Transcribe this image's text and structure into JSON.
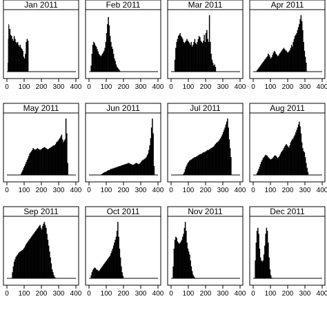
{
  "chart_data": [
    {
      "type": "bar",
      "title": "Jan 2011",
      "xlim": [
        0,
        400
      ],
      "xticks": [
        0,
        100,
        200,
        300,
        400
      ],
      "ylim": [
        0,
        1
      ],
      "bins": [
        {
          "from": 5,
          "to": 15,
          "heights": [
            0.15,
            0.55,
            0.8,
            0.78,
            0.6
          ]
        },
        {
          "from": 15,
          "to": 95,
          "heights": [
            0.72,
            0.62,
            0.6,
            0.55,
            0.52,
            0.6,
            0.55,
            0.5,
            0.48,
            0.5,
            0.45,
            0.42,
            0.45,
            0.4,
            0.38,
            0.35
          ]
        },
        {
          "from": 95,
          "to": 125,
          "heights": [
            0.25,
            0.22,
            0.3,
            0.5,
            0.55,
            0.52
          ]
        }
      ]
    },
    {
      "type": "bar",
      "title": "Feb 2011",
      "xlim": [
        0,
        400
      ],
      "xticks": [
        0,
        100,
        200,
        300,
        400
      ],
      "ylim": [
        0,
        1
      ],
      "bins": [
        {
          "from": 10,
          "to": 60,
          "heights": [
            0.1,
            0.3,
            0.45,
            0.5,
            0.48,
            0.44,
            0.42,
            0.38,
            0.34,
            0.3
          ]
        },
        {
          "from": 60,
          "to": 140,
          "heights": [
            0.28,
            0.26,
            0.27,
            0.3,
            0.32,
            0.35,
            0.4,
            0.5,
            0.65,
            0.8,
            0.92,
            0.78,
            0.6,
            0.5,
            0.42,
            0.38
          ]
        },
        {
          "from": 140,
          "to": 180,
          "heights": [
            0.3,
            0.22,
            0.18,
            0.12,
            0.08,
            0.06,
            0.04,
            0.02
          ]
        }
      ]
    },
    {
      "type": "bar",
      "title": "Mar 2011",
      "xlim": [
        0,
        400
      ],
      "xticks": [
        0,
        100,
        200,
        300,
        400
      ],
      "ylim": [
        0,
        1
      ],
      "bins": [
        {
          "from": 20,
          "to": 90,
          "heights": [
            0.2,
            0.4,
            0.5,
            0.55,
            0.6,
            0.62,
            0.65,
            0.6,
            0.58,
            0.55,
            0.5,
            0.48,
            0.5,
            0.52
          ]
        },
        {
          "from": 90,
          "to": 200,
          "heights": [
            0.55,
            0.52,
            0.5,
            0.48,
            0.45,
            0.5,
            0.42,
            0.45,
            0.5,
            0.55,
            0.48,
            0.46,
            0.5,
            0.55,
            0.6,
            0.58,
            0.52,
            0.5,
            0.48,
            0.52,
            0.62,
            0.5
          ]
        },
        {
          "from": 200,
          "to": 260,
          "heights": [
            0.65,
            0.7,
            0.55,
            0.5,
            0.95,
            0.5,
            0.3,
            0.2,
            0.15,
            0.1,
            0.12,
            0.08
          ]
        }
      ]
    },
    {
      "type": "bar",
      "title": "Apr 2011",
      "xlim": [
        0,
        400
      ],
      "xticks": [
        0,
        100,
        200,
        300,
        400
      ],
      "ylim": [
        0,
        1
      ],
      "bins": [
        {
          "from": 20,
          "to": 80,
          "heights": [
            0.02,
            0.04,
            0.06,
            0.08,
            0.1,
            0.12,
            0.14,
            0.16,
            0.18,
            0.2,
            0.22,
            0.24
          ]
        },
        {
          "from": 80,
          "to": 230,
          "heights": [
            0.26,
            0.3,
            0.28,
            0.25,
            0.22,
            0.24,
            0.28,
            0.32,
            0.35,
            0.33,
            0.3,
            0.28,
            0.26,
            0.27,
            0.3,
            0.32,
            0.34,
            0.36,
            0.38,
            0.4,
            0.38,
            0.36,
            0.35,
            0.33,
            0.32,
            0.34,
            0.36,
            0.4,
            0.45,
            0.42
          ]
        },
        {
          "from": 230,
          "to": 310,
          "heights": [
            0.5,
            0.55,
            0.6,
            0.62,
            0.65,
            0.7,
            0.75,
            0.8,
            0.88,
            0.95,
            0.85,
            0.7,
            0.5,
            0.35,
            0.25,
            0.15
          ]
        }
      ]
    },
    {
      "type": "bar",
      "title": "May 2011",
      "xlim": [
        0,
        400
      ],
      "xticks": [
        0,
        100,
        200,
        300,
        400
      ],
      "ylim": [
        0,
        1
      ],
      "bins": [
        {
          "from": 80,
          "to": 150,
          "heights": [
            0.02,
            0.05,
            0.08,
            0.12,
            0.15,
            0.18,
            0.22,
            0.25,
            0.28,
            0.32,
            0.36,
            0.38,
            0.4,
            0.42
          ]
        },
        {
          "from": 150,
          "to": 280,
          "heights": [
            0.45,
            0.44,
            0.42,
            0.43,
            0.44,
            0.45,
            0.44,
            0.43,
            0.42,
            0.43,
            0.44,
            0.45,
            0.46,
            0.47,
            0.46,
            0.45,
            0.44,
            0.43,
            0.44,
            0.45,
            0.46,
            0.47,
            0.48,
            0.49,
            0.5,
            0.5
          ]
        },
        {
          "from": 280,
          "to": 355,
          "heights": [
            0.52,
            0.55,
            0.56,
            0.58,
            0.6,
            0.62,
            0.65,
            0.68,
            0.6,
            0.55,
            0.58,
            0.6,
            0.95,
            0.7,
            0.2
          ]
        }
      ]
    },
    {
      "type": "bar",
      "title": "Jun 2011",
      "xlim": [
        0,
        400
      ],
      "xticks": [
        0,
        100,
        200,
        300,
        400
      ],
      "ylim": [
        0,
        1
      ],
      "bins": [
        {
          "from": 70,
          "to": 200,
          "heights": [
            0.01,
            0.02,
            0.03,
            0.04,
            0.05,
            0.05,
            0.06,
            0.07,
            0.08,
            0.08,
            0.09,
            0.1,
            0.1,
            0.11,
            0.11,
            0.12,
            0.12,
            0.13,
            0.13,
            0.14,
            0.14,
            0.15,
            0.15,
            0.16,
            0.16,
            0.17
          ]
        },
        {
          "from": 200,
          "to": 330,
          "heights": [
            0.17,
            0.18,
            0.18,
            0.19,
            0.19,
            0.2,
            0.2,
            0.19,
            0.18,
            0.18,
            0.17,
            0.17,
            0.18,
            0.19,
            0.2,
            0.2,
            0.19,
            0.18,
            0.19,
            0.2,
            0.22,
            0.24,
            0.25,
            0.26,
            0.27,
            0.28
          ]
        },
        {
          "from": 330,
          "to": 380,
          "heights": [
            0.3,
            0.33,
            0.36,
            0.42,
            0.5,
            0.62,
            0.8,
            0.95,
            0.7,
            0.15
          ]
        }
      ]
    },
    {
      "type": "bar",
      "title": "Jul 2011",
      "xlim": [
        0,
        400
      ],
      "xticks": [
        0,
        100,
        200,
        300,
        400
      ],
      "ylim": [
        0,
        1
      ],
      "bins": [
        {
          "from": 70,
          "to": 150,
          "heights": [
            0.02,
            0.05,
            0.1,
            0.14,
            0.17,
            0.2,
            0.22,
            0.24,
            0.25,
            0.26,
            0.27,
            0.28,
            0.29,
            0.3,
            0.3,
            0.31
          ]
        },
        {
          "from": 150,
          "to": 280,
          "heights": [
            0.32,
            0.33,
            0.34,
            0.35,
            0.35,
            0.36,
            0.37,
            0.38,
            0.38,
            0.39,
            0.4,
            0.41,
            0.42,
            0.42,
            0.43,
            0.44,
            0.45,
            0.46,
            0.47,
            0.48,
            0.5,
            0.52,
            0.54,
            0.55,
            0.56,
            0.58
          ]
        },
        {
          "from": 280,
          "to": 350,
          "heights": [
            0.6,
            0.62,
            0.65,
            0.68,
            0.72,
            0.76,
            0.8,
            0.85,
            0.9,
            0.95,
            0.8,
            0.6,
            0.45,
            0.3
          ]
        }
      ]
    },
    {
      "type": "bar",
      "title": "Aug 2011",
      "xlim": [
        0,
        400
      ],
      "xticks": [
        0,
        100,
        200,
        300,
        400
      ],
      "ylim": [
        0,
        1
      ],
      "bins": [
        {
          "from": 20,
          "to": 100,
          "heights": [
            0.03,
            0.06,
            0.1,
            0.14,
            0.18,
            0.22,
            0.25,
            0.28,
            0.3,
            0.32,
            0.34,
            0.33,
            0.32,
            0.3,
            0.28,
            0.27
          ]
        },
        {
          "from": 100,
          "to": 230,
          "heights": [
            0.26,
            0.27,
            0.28,
            0.3,
            0.32,
            0.33,
            0.32,
            0.3,
            0.28,
            0.3,
            0.32,
            0.35,
            0.38,
            0.4,
            0.42,
            0.45,
            0.48,
            0.5,
            0.52,
            0.5,
            0.48,
            0.46,
            0.5,
            0.55,
            0.58,
            0.6
          ]
        },
        {
          "from": 230,
          "to": 320,
          "heights": [
            0.62,
            0.65,
            0.68,
            0.72,
            0.76,
            0.8,
            0.85,
            0.9,
            0.82,
            0.7,
            0.55,
            0.45,
            0.4,
            0.38,
            0.3,
            0.2,
            0.12,
            0.05
          ]
        }
      ]
    },
    {
      "type": "bar",
      "title": "Sep 2011",
      "xlim": [
        0,
        400
      ],
      "xticks": [
        0,
        100,
        200,
        300,
        400
      ],
      "ylim": [
        0,
        1
      ],
      "bins": [
        {
          "from": 30,
          "to": 100,
          "heights": [
            0.1,
            0.2,
            0.28,
            0.32,
            0.36,
            0.38,
            0.4,
            0.42,
            0.44,
            0.45,
            0.46,
            0.47,
            0.48,
            0.5
          ]
        },
        {
          "from": 100,
          "to": 200,
          "heights": [
            0.52,
            0.55,
            0.58,
            0.6,
            0.62,
            0.64,
            0.66,
            0.68,
            0.7,
            0.72,
            0.74,
            0.76,
            0.78,
            0.8,
            0.82,
            0.84,
            0.86,
            0.88,
            0.9,
            0.85
          ]
        },
        {
          "from": 200,
          "to": 280,
          "heights": [
            0.82,
            0.88,
            0.92,
            0.95,
            0.9,
            0.85,
            0.75,
            0.65,
            0.55,
            0.45,
            0.35,
            0.25,
            0.15,
            0.1,
            0.05,
            0.02
          ]
        }
      ]
    },
    {
      "type": "bar",
      "title": "Oct 2011",
      "xlim": [
        0,
        400
      ],
      "xticks": [
        0,
        100,
        200,
        300,
        400
      ],
      "ylim": [
        0,
        1
      ],
      "bins": [
        {
          "from": 10,
          "to": 100,
          "heights": [
            0.05,
            0.1,
            0.14,
            0.16,
            0.18,
            0.17,
            0.15,
            0.14,
            0.13,
            0.12,
            0.14,
            0.16,
            0.18,
            0.2,
            0.22,
            0.24,
            0.26,
            0.28
          ]
        },
        {
          "from": 100,
          "to": 170,
          "heights": [
            0.3,
            0.32,
            0.34,
            0.36,
            0.38,
            0.42,
            0.46,
            0.5,
            0.55,
            0.6,
            0.65,
            0.7,
            0.8,
            0.95
          ]
        },
        {
          "from": 170,
          "to": 200,
          "heights": [
            0.7,
            0.5,
            0.35,
            0.2,
            0.1,
            0.04
          ]
        }
      ]
    },
    {
      "type": "bar",
      "title": "Nov 2011",
      "xlim": [
        0,
        400
      ],
      "xticks": [
        0,
        100,
        200,
        300,
        400
      ],
      "ylim": [
        0,
        1
      ],
      "bins": [
        {
          "from": 10,
          "to": 60,
          "heights": [
            0.2,
            0.5,
            0.65,
            0.7,
            0.68,
            0.62,
            0.6,
            0.58,
            0.6,
            0.62
          ]
        },
        {
          "from": 60,
          "to": 110,
          "heights": [
            0.65,
            0.7,
            0.75,
            0.85,
            0.95,
            0.8,
            0.6,
            0.5,
            0.45,
            0.4
          ]
        },
        {
          "from": 110,
          "to": 140,
          "heights": [
            0.3,
            0.2,
            0.12,
            0.06,
            0.03,
            0.01
          ]
        }
      ]
    },
    {
      "type": "bar",
      "title": "Dec 2011",
      "xlim": [
        0,
        400
      ],
      "xticks": [
        0,
        100,
        200,
        300,
        400
      ],
      "ylim": [
        0,
        1
      ],
      "bins": [
        {
          "from": 10,
          "to": 40,
          "heights": [
            0.3,
            0.6,
            0.8,
            0.85,
            0.75,
            0.5
          ]
        },
        {
          "from": 40,
          "to": 90,
          "heights": [
            0.35,
            0.3,
            0.28,
            0.3,
            0.4,
            0.55,
            0.75,
            0.85,
            0.8,
            0.6
          ]
        },
        {
          "from": 90,
          "to": 110,
          "heights": [
            0.35,
            0.15,
            0.05,
            0.01
          ]
        }
      ]
    }
  ]
}
